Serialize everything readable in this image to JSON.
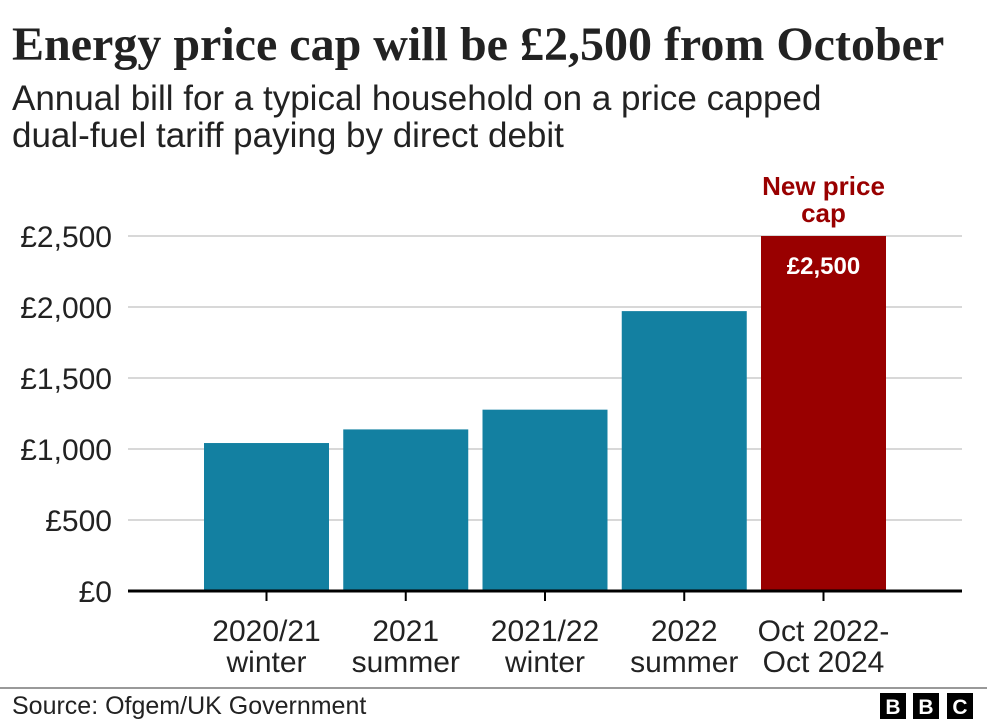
{
  "chart_data": {
    "type": "bar",
    "title": "Energy price cap will be £2,500 from October",
    "subtitle_lines": [
      "Annual bill for a typical household on a price capped",
      "dual-fuel tariff paying by direct debit"
    ],
    "categories": [
      [
        "2020/21",
        "winter"
      ],
      [
        "2021",
        "summer"
      ],
      [
        "2021/22",
        "winter"
      ],
      [
        "2022",
        "summer"
      ],
      [
        "Oct 2022-",
        "Oct 2024"
      ]
    ],
    "values": [
      1042,
      1138,
      1277,
      1971,
      2500
    ],
    "ylim": [
      0,
      2500
    ],
    "yticks": [
      0,
      500,
      1000,
      1500,
      2000,
      2500
    ],
    "ytick_labels": [
      "£0",
      "£500",
      "£1,000",
      "£1,500",
      "£2,000",
      "£2,500"
    ],
    "xlabel": "",
    "ylabel": "",
    "grid": true,
    "legend": "none",
    "highlight": {
      "index": 4,
      "annotation_lines": [
        "New price",
        "cap"
      ],
      "value_label": "£2,500"
    },
    "colors": {
      "bar": "#1380A1",
      "highlight": "#990000",
      "grid": "#CCCCCC",
      "axis": "#000000",
      "text": "#222222"
    }
  },
  "footer": {
    "source": "Source: Ofgem/UK Government",
    "logo_letters": [
      "B",
      "B",
      "C"
    ]
  }
}
